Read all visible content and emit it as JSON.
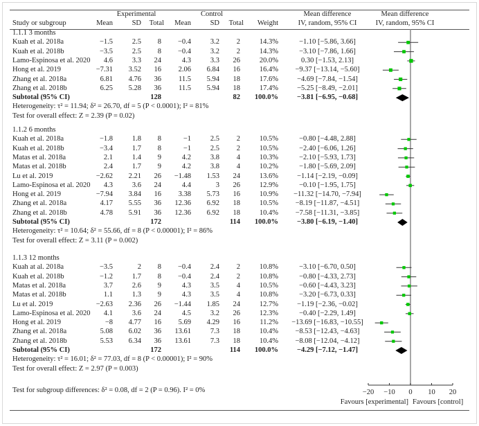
{
  "chart_data": {
    "type": "forest",
    "headers": {
      "study": "Study or subgroup",
      "experimental": "Experimental",
      "control": "Control",
      "mean": "Mean",
      "sd": "SD",
      "total": "Total",
      "weight": "Weight",
      "md_title": "Mean difference",
      "md_sub": "IV, random, 95% CI",
      "plot_title": "Mean difference",
      "plot_sub": "IV, random, 95% CI"
    },
    "groups": [
      {
        "label": "1.1.1 3 months",
        "studies": [
          {
            "name": "Kuah et al. 2018a",
            "exp_mean": "−1.5",
            "exp_sd": "2.5",
            "exp_total": "8",
            "ctl_mean": "−0.4",
            "ctl_sd": "3.2",
            "ctl_total": "2",
            "weight": "14.3%",
            "md_text": "−1.10 [−5.86, 3.66]",
            "md": -1.1,
            "lo": -5.86,
            "hi": 3.66,
            "w": 14.3
          },
          {
            "name": "Kuah et al. 2018b",
            "exp_mean": "−3.5",
            "exp_sd": "2.5",
            "exp_total": "8",
            "ctl_mean": "−0.4",
            "ctl_sd": "3.2",
            "ctl_total": "2",
            "weight": "14.3%",
            "md_text": "−3.10 [−7.86, 1.66]",
            "md": -3.1,
            "lo": -7.86,
            "hi": 1.66,
            "w": 14.3
          },
          {
            "name": "Lamo-Espinosa et al. 2020",
            "exp_mean": "4.6",
            "exp_sd": "3.3",
            "exp_total": "24",
            "ctl_mean": "4.3",
            "ctl_sd": "3.3",
            "ctl_total": "26",
            "weight": "20.0%",
            "md_text": "0.30 [−1.53, 2.13]",
            "md": 0.3,
            "lo": -1.53,
            "hi": 2.13,
            "w": 20.0
          },
          {
            "name": "Hong et al. 2019",
            "exp_mean": "−7.31",
            "exp_sd": "3.52",
            "exp_total": "16",
            "ctl_mean": "2.06",
            "ctl_sd": "6.84",
            "ctl_total": "16",
            "weight": "16.4%",
            "md_text": "−9.37 [−13.14, −5.60]",
            "md": -9.37,
            "lo": -13.14,
            "hi": -5.6,
            "w": 16.4
          },
          {
            "name": "Zhang et al. 2018a",
            "exp_mean": "6.81",
            "exp_sd": "4.76",
            "exp_total": "36",
            "ctl_mean": "11.5",
            "ctl_sd": "5.94",
            "ctl_total": "18",
            "weight": "17.6%",
            "md_text": "−4.69 [−7.84, −1.54]",
            "md": -4.69,
            "lo": -7.84,
            "hi": -1.54,
            "w": 17.6
          },
          {
            "name": "Zhang et al. 2018b",
            "exp_mean": "6.25",
            "exp_sd": "5.28",
            "exp_total": "36",
            "ctl_mean": "11.5",
            "ctl_sd": "5.94",
            "ctl_total": "18",
            "weight": "17.4%",
            "md_text": "−5.25 [−8.49, −2.01]",
            "md": -5.25,
            "lo": -8.49,
            "hi": -2.01,
            "w": 17.4
          }
        ],
        "subtotal": {
          "label": "Subtotal (95% CI)",
          "exp_total": "128",
          "ctl_total": "82",
          "weight": "100.0%",
          "md_text": "−3.81 [−6.95, −0.68]",
          "md": -3.81,
          "lo": -6.95,
          "hi": -0.68
        },
        "heterogeneity": "Heterogeneity: τ² = 11.94; δ² = 26.70, df = 5 (P < 0.0001); I² = 81%",
        "overall": "Test for overall effect:  Z = 2.39 (P = 0.02)"
      },
      {
        "label": "1.1.2 6 months",
        "studies": [
          {
            "name": "Kuah et al. 2018a",
            "exp_mean": "−1.8",
            "exp_sd": "1.8",
            "exp_total": "8",
            "ctl_mean": "−1",
            "ctl_sd": "2.5",
            "ctl_total": "2",
            "weight": "10.5%",
            "md_text": "−0.80 [−4.48, 2.88]",
            "md": -0.8,
            "lo": -4.48,
            "hi": 2.88,
            "w": 10.5
          },
          {
            "name": "Kuah et al. 2018b",
            "exp_mean": "−3.4",
            "exp_sd": "1.7",
            "exp_total": "8",
            "ctl_mean": "−1",
            "ctl_sd": "2.5",
            "ctl_total": "2",
            "weight": "10.5%",
            "md_text": "−2.40 [−6.06, 1.26]",
            "md": -2.4,
            "lo": -6.06,
            "hi": 1.26,
            "w": 10.5
          },
          {
            "name": "Matas et al. 2018a",
            "exp_mean": "2.1",
            "exp_sd": "1.4",
            "exp_total": "9",
            "ctl_mean": "4.2",
            "ctl_sd": "3.8",
            "ctl_total": "4",
            "weight": "10.3%",
            "md_text": "−2.10 [−5.93, 1.73]",
            "md": -2.1,
            "lo": -5.93,
            "hi": 1.73,
            "w": 10.3
          },
          {
            "name": "Matas et al. 2018b",
            "exp_mean": "2.4",
            "exp_sd": "1.7",
            "exp_total": "9",
            "ctl_mean": "4.2",
            "ctl_sd": "3.8",
            "ctl_total": "4",
            "weight": "10.2%",
            "md_text": "−1.80 [−5.69, 2.09]",
            "md": -1.8,
            "lo": -5.69,
            "hi": 2.09,
            "w": 10.2
          },
          {
            "name": "Lu et al. 2019",
            "exp_mean": "−2.62",
            "exp_sd": "2.21",
            "exp_total": "26",
            "ctl_mean": "−1.48",
            "ctl_sd": "1.53",
            "ctl_total": "24",
            "weight": "13.6%",
            "md_text": "−1.14 [−2.19, −0.09]",
            "md": -1.14,
            "lo": -2.19,
            "hi": -0.09,
            "w": 13.6
          },
          {
            "name": "Lamo-Espinosa et al. 2020",
            "exp_mean": "4.3",
            "exp_sd": "3.6",
            "exp_total": "24",
            "ctl_mean": "4.4",
            "ctl_sd": "3",
            "ctl_total": "26",
            "weight": "12.9%",
            "md_text": "−0.10 [−1.95, 1.75]",
            "md": -0.1,
            "lo": -1.95,
            "hi": 1.75,
            "w": 12.9
          },
          {
            "name": "Hong et al. 2019",
            "exp_mean": "−7.94",
            "exp_sd": "3.84",
            "exp_total": "16",
            "ctl_mean": "3.38",
            "ctl_sd": "5.73",
            "ctl_total": "16",
            "weight": "10.9%",
            "md_text": "−11.32 [−14.70, −7.94]",
            "md": -11.32,
            "lo": -14.7,
            "hi": -7.94,
            "w": 10.9
          },
          {
            "name": "Zhang et al. 2018a",
            "exp_mean": "4.17",
            "exp_sd": "5.55",
            "exp_total": "36",
            "ctl_mean": "12.36",
            "ctl_sd": "6.92",
            "ctl_total": "18",
            "weight": "10.5%",
            "md_text": "−8.19 [−11.87, −4.51]",
            "md": -8.19,
            "lo": -11.87,
            "hi": -4.51,
            "w": 10.5
          },
          {
            "name": "Zhang et al. 2018b",
            "exp_mean": "4.78",
            "exp_sd": "5.91",
            "exp_total": "36",
            "ctl_mean": "12.36",
            "ctl_sd": "6.92",
            "ctl_total": "18",
            "weight": "10.4%",
            "md_text": "−7.58 [−11.31, −3.85]",
            "md": -7.58,
            "lo": -11.31,
            "hi": -3.85,
            "w": 10.4
          }
        ],
        "subtotal": {
          "label": "Subtotal (95% CI)",
          "exp_total": "172",
          "ctl_total": "114",
          "weight": "100.0%",
          "md_text": "−3.80 [−6.19, −1.40]",
          "md": -3.8,
          "lo": -6.19,
          "hi": -1.4
        },
        "heterogeneity": "Heterogeneity: τ² = 10.64; δ² = 55.66, df = 8 (P < 0.00001); I² = 86%",
        "overall": "Test for overall effect:  Z = 3.11 (P = 0.002)"
      },
      {
        "label": "1.1.3 12 months",
        "studies": [
          {
            "name": "Kuah at al. 2018a",
            "exp_mean": "−3.5",
            "exp_sd": "2",
            "exp_total": "8",
            "ctl_mean": "−0.4",
            "ctl_sd": "2.4",
            "ctl_total": "2",
            "weight": "10.8%",
            "md_text": "−3.10 [−6.70, 0.50]",
            "md": -3.1,
            "lo": -6.7,
            "hi": 0.5,
            "w": 10.8
          },
          {
            "name": "Kuah et al. 2018b",
            "exp_mean": "−1.2",
            "exp_sd": "1.7",
            "exp_total": "8",
            "ctl_mean": "−0.4",
            "ctl_sd": "2.4",
            "ctl_total": "2",
            "weight": "10.8%",
            "md_text": "−0.80 [−4.33, 2.73]",
            "md": -0.8,
            "lo": -4.33,
            "hi": 2.73,
            "w": 10.8
          },
          {
            "name": "Matas et al. 2018a",
            "exp_mean": "3.7",
            "exp_sd": "2.6",
            "exp_total": "9",
            "ctl_mean": "4.3",
            "ctl_sd": "3.5",
            "ctl_total": "4",
            "weight": "10.5%",
            "md_text": "−0.60 [−4.43, 3.23]",
            "md": -0.6,
            "lo": -4.43,
            "hi": 3.23,
            "w": 10.5
          },
          {
            "name": "Matas et al. 2018b",
            "exp_mean": "1.1",
            "exp_sd": "1.3",
            "exp_total": "9",
            "ctl_mean": "4.3",
            "ctl_sd": "3.5",
            "ctl_total": "4",
            "weight": "10.8%",
            "md_text": "−3.20 [−6.73, 0.33]",
            "md": -3.2,
            "lo": -6.73,
            "hi": 0.33,
            "w": 10.8
          },
          {
            "name": "Lu et al. 2019",
            "exp_mean": "−2.63",
            "exp_sd": "2.36",
            "exp_total": "26",
            "ctl_mean": "−1.44",
            "ctl_sd": "1.85",
            "ctl_total": "24",
            "weight": "12.7%",
            "md_text": "−1.19 [−2.36, −0.02]",
            "md": -1.19,
            "lo": -2.36,
            "hi": -0.02,
            "w": 12.7
          },
          {
            "name": "Lamo-Espinosa et al. 2020",
            "exp_mean": "4.1",
            "exp_sd": "3.6",
            "exp_total": "24",
            "ctl_mean": "4.5",
            "ctl_sd": "3.2",
            "ctl_total": "26",
            "weight": "12.3%",
            "md_text": "−0.40 [−2.29, 1.49]",
            "md": -0.4,
            "lo": -2.29,
            "hi": 1.49,
            "w": 12.3
          },
          {
            "name": "Hong et al. 2019",
            "exp_mean": "−8",
            "exp_sd": "4.77",
            "exp_total": "16",
            "ctl_mean": "5.69",
            "ctl_sd": "4.29",
            "ctl_total": "16",
            "weight": "11.2%",
            "md_text": "−13.69 [−16.83, −10.55]",
            "md": -13.69,
            "lo": -16.83,
            "hi": -10.55,
            "w": 11.2
          },
          {
            "name": "Zhang et al. 2018a",
            "exp_mean": "5.08",
            "exp_sd": "6.02",
            "exp_total": "36",
            "ctl_mean": "13.61",
            "ctl_sd": "7.3",
            "ctl_total": "18",
            "weight": "10.4%",
            "md_text": "−8.53 [−12.43, −4.63]",
            "md": -8.53,
            "lo": -12.43,
            "hi": -4.63,
            "w": 10.4
          },
          {
            "name": "Zhang et al. 2018b",
            "exp_mean": "5.53",
            "exp_sd": "6.34",
            "exp_total": "36",
            "ctl_mean": "13.61",
            "ctl_sd": "7.3",
            "ctl_total": "18",
            "weight": "10.4%",
            "md_text": "−8.08 [−12.04, −4.12]",
            "md": -8.08,
            "lo": -12.04,
            "hi": -4.12,
            "w": 10.4
          }
        ],
        "subtotal": {
          "label": "Subtotal (95% CI)",
          "exp_total": "172",
          "ctl_total": "114",
          "weight": "100.0%",
          "md_text": "−4.29 [−7.12, −1.47]",
          "md": -4.29,
          "lo": -7.12,
          "hi": -1.47
        },
        "heterogeneity": "Heterogeneity: τ² = 16.01; δ² = 77.03, df = 8 (P < 0.00001); I² = 90%",
        "overall": "Test for overall effect:  Z = 2.97 (P = 0.003)"
      }
    ],
    "subgroup_test": "Test for subgroup differences:  δ² = 0.08, df = 2 (P = 0.96). I² = 0%",
    "xlim": [
      -20,
      20
    ],
    "xticks": [
      "−20",
      "−10",
      "0",
      "10",
      "20"
    ],
    "xtick_values": [
      -20,
      -10,
      0,
      10,
      20
    ],
    "favours_left": "Favours [experimental]",
    "favours_right": "Favours [control]",
    "colors": {
      "study_marker": "#00c800",
      "ci_line": "#333333",
      "summary_diamond": "#000000",
      "zero_line": "#888888"
    }
  }
}
